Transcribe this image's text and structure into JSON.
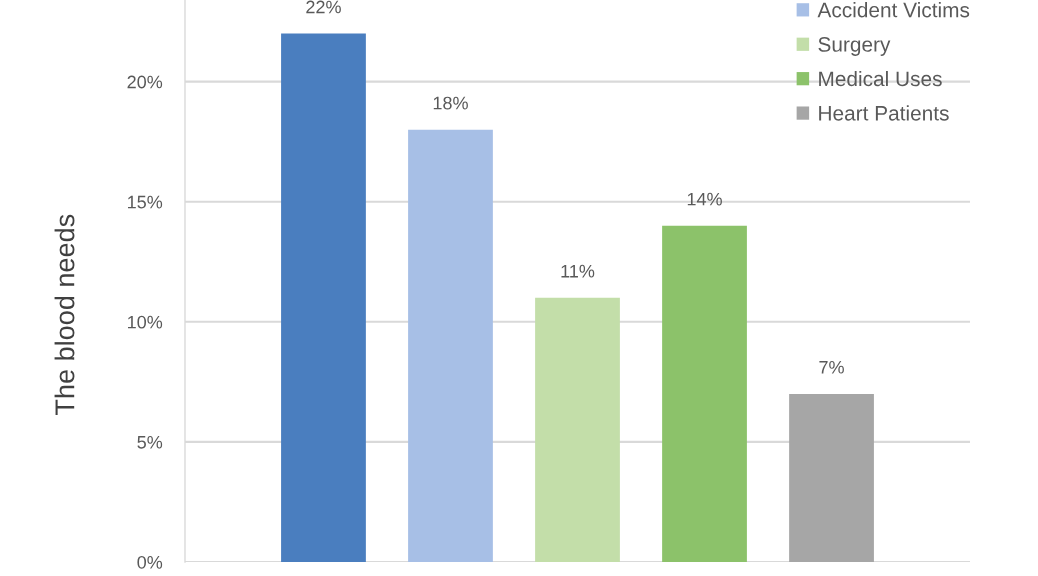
{
  "chart_data": {
    "type": "bar",
    "ylabel": "The blood needs",
    "categories": [
      null
    ],
    "series": [
      {
        "color": "#4a7ebf",
        "values": [
          22
        ],
        "value_labels": [
          "22%"
        ]
      },
      {
        "name": "Accident Victims",
        "color": "#a7bfe6",
        "values": [
          18
        ],
        "value_labels": [
          "18%"
        ]
      },
      {
        "name": "Surgery",
        "color": "#c3dea9",
        "values": [
          11
        ],
        "value_labels": [
          "11%"
        ]
      },
      {
        "name": "Medical Uses",
        "color": "#8cc26a",
        "values": [
          14
        ],
        "value_labels": [
          "14%"
        ]
      },
      {
        "name": "Heart Patients",
        "color": "#a6a6a6",
        "values": [
          7
        ],
        "value_labels": [
          "7%"
        ]
      }
    ],
    "ylim": [
      0,
      23.4
    ],
    "yticks": [
      {
        "value": 0,
        "label": "0%"
      },
      {
        "value": 5,
        "label": "5%"
      },
      {
        "value": 10,
        "label": "10%"
      },
      {
        "value": 15,
        "label": "15%"
      },
      {
        "value": 20,
        "label": "20%"
      }
    ],
    "grid": "y",
    "legend": "top right"
  }
}
